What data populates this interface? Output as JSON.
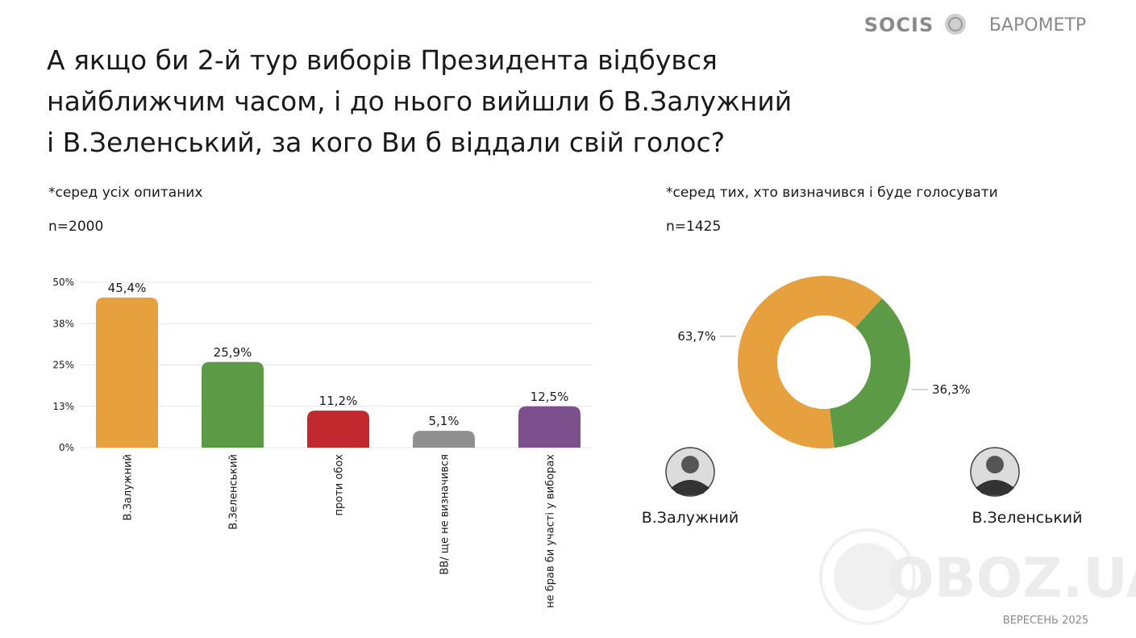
{
  "header": {
    "title": [
      "А якщо би 2-й тур виборів Президента відбувся",
      "найближчим часом, і до нього вийшли б В.Залужний",
      "і В.Зеленський, за кого Ви б віддали свій голос?"
    ],
    "brand": "SOCIS",
    "product": "БАРОМЕТР"
  },
  "footer": {
    "date": "ВЕРЕСЕНЬ 2025",
    "watermark": "OBOZ.UA"
  },
  "chart_data": [
    {
      "type": "bar",
      "subtitle": "*серед усіх опитаних",
      "note": "n=2000",
      "categories": [
        "В.Залужний",
        "В.Зеленський",
        "проти обох",
        "ВВ/ ще не визначився",
        "не брав би участі у виборах"
      ],
      "values": [
        45.4,
        25.9,
        11.2,
        5.1,
        12.5
      ],
      "value_labels": [
        "45,4%",
        "25,9%",
        "11,2%",
        "5,1%",
        "12,5%"
      ],
      "colors": [
        "#e6a03e",
        "#5c9a46",
        "#c1292f",
        "#8f8f8f",
        "#7c4f8d"
      ],
      "ylim": [
        0,
        50
      ],
      "yticks": [
        {
          "value": 0,
          "label": "0%"
        },
        {
          "value": 12.5,
          "label": "13%"
        },
        {
          "value": 25,
          "label": "25%"
        },
        {
          "value": 37.5,
          "label": "38%"
        },
        {
          "value": 50,
          "label": "50%"
        }
      ],
      "grid": true
    },
    {
      "type": "pie",
      "subtitle": "*серед тих, хто визначився і буде голосувати",
      "note": "n=1425",
      "categories": [
        "В.Залужний",
        "В.Зеленський"
      ],
      "values": [
        63.7,
        36.3
      ],
      "value_labels": [
        "63,7%",
        "36,3%"
      ],
      "colors": [
        "#e6a03e",
        "#5c9a46"
      ],
      "donut": true
    }
  ]
}
